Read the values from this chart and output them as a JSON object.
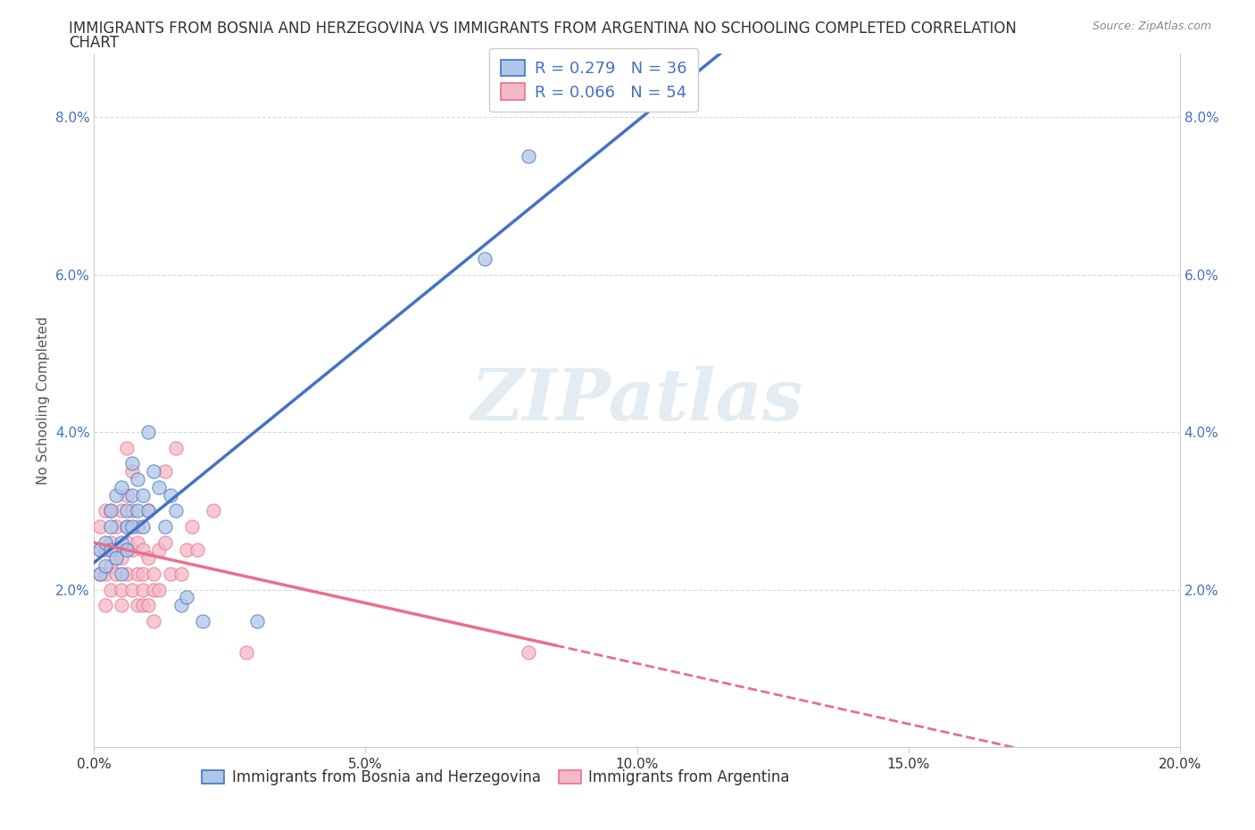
{
  "title_line1": "IMMIGRANTS FROM BOSNIA AND HERZEGOVINA VS IMMIGRANTS FROM ARGENTINA NO SCHOOLING COMPLETED CORRELATION",
  "title_line2": "CHART",
  "source_text": "Source: ZipAtlas.com",
  "ylabel": "No Schooling Completed",
  "xlim": [
    0,
    0.2
  ],
  "ylim": [
    0,
    0.088
  ],
  "xticks": [
    0.0,
    0.05,
    0.1,
    0.15,
    0.2
  ],
  "yticks": [
    0.02,
    0.04,
    0.06,
    0.08
  ],
  "blue_color": "#aec6e8",
  "pink_color": "#f4b8c8",
  "blue_line_color": "#4472c4",
  "pink_line_color": "#e8708a",
  "blue_R": 0.279,
  "blue_N": 36,
  "pink_R": 0.066,
  "pink_N": 54,
  "blue_scatter": [
    [
      0.001,
      0.025
    ],
    [
      0.001,
      0.022
    ],
    [
      0.002,
      0.026
    ],
    [
      0.002,
      0.023
    ],
    [
      0.003,
      0.025
    ],
    [
      0.003,
      0.028
    ],
    [
      0.003,
      0.03
    ],
    [
      0.004,
      0.024
    ],
    [
      0.004,
      0.032
    ],
    [
      0.005,
      0.026
    ],
    [
      0.005,
      0.022
    ],
    [
      0.005,
      0.033
    ],
    [
      0.006,
      0.028
    ],
    [
      0.006,
      0.025
    ],
    [
      0.006,
      0.03
    ],
    [
      0.007,
      0.032
    ],
    [
      0.007,
      0.028
    ],
    [
      0.007,
      0.036
    ],
    [
      0.008,
      0.03
    ],
    [
      0.008,
      0.034
    ],
    [
      0.009,
      0.028
    ],
    [
      0.009,
      0.032
    ],
    [
      0.01,
      0.03
    ],
    [
      0.01,
      0.04
    ],
    [
      0.011,
      0.035
    ],
    [
      0.012,
      0.033
    ],
    [
      0.013,
      0.028
    ],
    [
      0.014,
      0.032
    ],
    [
      0.015,
      0.03
    ],
    [
      0.016,
      0.018
    ],
    [
      0.017,
      0.019
    ],
    [
      0.02,
      0.016
    ],
    [
      0.03,
      0.016
    ],
    [
      0.072,
      0.062
    ],
    [
      0.08,
      0.075
    ],
    [
      0.09,
      0.082
    ]
  ],
  "pink_scatter": [
    [
      0.001,
      0.025
    ],
    [
      0.001,
      0.028
    ],
    [
      0.001,
      0.022
    ],
    [
      0.002,
      0.025
    ],
    [
      0.002,
      0.03
    ],
    [
      0.002,
      0.022
    ],
    [
      0.002,
      0.018
    ],
    [
      0.003,
      0.026
    ],
    [
      0.003,
      0.023
    ],
    [
      0.003,
      0.02
    ],
    [
      0.003,
      0.03
    ],
    [
      0.004,
      0.028
    ],
    [
      0.004,
      0.022
    ],
    [
      0.004,
      0.025
    ],
    [
      0.005,
      0.02
    ],
    [
      0.005,
      0.024
    ],
    [
      0.005,
      0.03
    ],
    [
      0.005,
      0.018
    ],
    [
      0.006,
      0.026
    ],
    [
      0.006,
      0.022
    ],
    [
      0.006,
      0.028
    ],
    [
      0.006,
      0.032
    ],
    [
      0.006,
      0.038
    ],
    [
      0.007,
      0.025
    ],
    [
      0.007,
      0.02
    ],
    [
      0.007,
      0.03
    ],
    [
      0.007,
      0.035
    ],
    [
      0.008,
      0.022
    ],
    [
      0.008,
      0.018
    ],
    [
      0.008,
      0.026
    ],
    [
      0.008,
      0.028
    ],
    [
      0.009,
      0.02
    ],
    [
      0.009,
      0.025
    ],
    [
      0.009,
      0.018
    ],
    [
      0.009,
      0.022
    ],
    [
      0.01,
      0.024
    ],
    [
      0.01,
      0.03
    ],
    [
      0.01,
      0.018
    ],
    [
      0.011,
      0.016
    ],
    [
      0.011,
      0.022
    ],
    [
      0.011,
      0.02
    ],
    [
      0.012,
      0.025
    ],
    [
      0.012,
      0.02
    ],
    [
      0.013,
      0.026
    ],
    [
      0.013,
      0.035
    ],
    [
      0.014,
      0.022
    ],
    [
      0.015,
      0.038
    ],
    [
      0.016,
      0.022
    ],
    [
      0.017,
      0.025
    ],
    [
      0.018,
      0.028
    ],
    [
      0.019,
      0.025
    ],
    [
      0.022,
      0.03
    ],
    [
      0.028,
      0.012
    ],
    [
      0.08,
      0.012
    ]
  ],
  "background_color": "#ffffff",
  "grid_color": "#d0d0d0",
  "watermark_text": "ZIPatlas",
  "title_fontsize": 12,
  "label_fontsize": 11,
  "tick_fontsize": 11,
  "legend_fontsize": 13
}
